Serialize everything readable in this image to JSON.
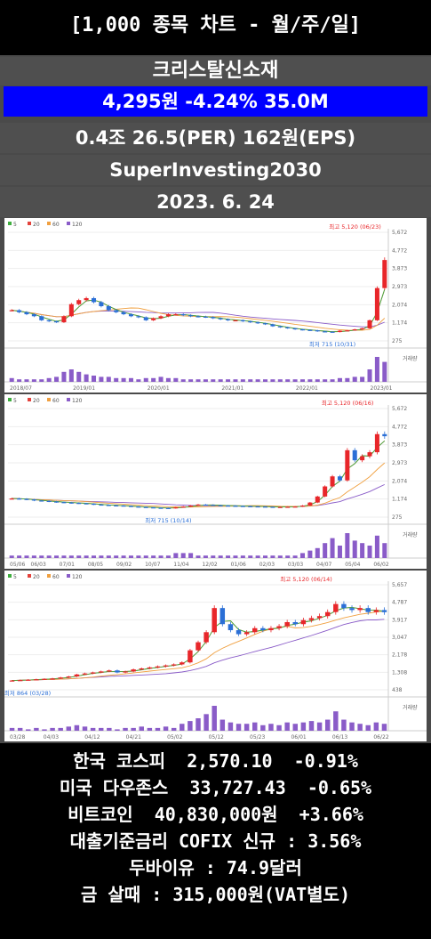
{
  "header": {
    "title": "[1,000 종목 차트 - 월/주/일]",
    "stock_name": "크리스탈신소재",
    "price_line": "4,295원  -4.24%  35.0M",
    "stats_line": "0.4조  26.5(PER)  162원(EPS)",
    "site": "SuperInvesting2030",
    "date": "2023. 6. 24"
  },
  "colors": {
    "up": "#e8262a",
    "down": "#2b6fd6",
    "ma5": "#3fae3f",
    "ma20": "#e3423b",
    "ma60": "#f0a040",
    "ma120": "#8a5cc8",
    "price_bar": "#0000ff"
  },
  "chart_data": [
    {
      "type": "candlestick",
      "period": "monthly",
      "legend": [
        "5",
        "20",
        "60",
        "120"
      ],
      "y_ticks": [
        "5,672",
        "4,772",
        "3,873",
        "2,973",
        "2,074",
        "1,174",
        "275"
      ],
      "ylim": [
        275,
        5672
      ],
      "x_ticks": [
        "2018/07",
        "2019/01",
        "2020/01",
        "2021/01",
        "2022/01",
        "2023/01"
      ],
      "high_label": "최고 5,120 (06/23)",
      "low_label": "최저 715 (10/31)",
      "volume_label": "거래량",
      "close": [
        1800,
        1700,
        1600,
        1500,
        1300,
        1250,
        1200,
        1500,
        2100,
        2300,
        2400,
        2200,
        2000,
        1800,
        1700,
        1600,
        1500,
        1450,
        1300,
        1400,
        1500,
        1600,
        1600,
        1550,
        1500,
        1480,
        1460,
        1400,
        1350,
        1300,
        1300,
        1250,
        1200,
        1150,
        1100,
        1000,
        950,
        900,
        850,
        820,
        800,
        750,
        730,
        715,
        780,
        800,
        850,
        900,
        1300,
        2900,
        4295
      ],
      "volume": [
        3,
        2,
        2,
        2,
        2,
        3,
        4,
        8,
        10,
        8,
        6,
        5,
        4,
        4,
        3,
        3,
        3,
        2,
        3,
        3,
        4,
        3,
        3,
        2,
        2,
        2,
        2,
        2,
        2,
        2,
        2,
        2,
        2,
        2,
        2,
        2,
        2,
        2,
        2,
        2,
        2,
        2,
        2,
        2,
        3,
        3,
        4,
        4,
        10,
        20,
        16
      ]
    },
    {
      "type": "candlestick",
      "period": "weekly",
      "legend": [
        "5",
        "20",
        "60",
        "120"
      ],
      "y_ticks": [
        "5,672",
        "4,772",
        "3,873",
        "2,973",
        "2,074",
        "1,174",
        "275"
      ],
      "ylim": [
        275,
        5672
      ],
      "x_ticks": [
        "05/06",
        "06/03",
        "07/01",
        "08/05",
        "09/02",
        "10/07",
        "11/04",
        "12/02",
        "01/06",
        "02/03",
        "03/03",
        "04/07",
        "05/04",
        "06/02"
      ],
      "high_label": "최고 5,120 (06/16)",
      "low_label": "최저 715 (10/14)",
      "volume_label": "거래량",
      "close": [
        1200,
        1180,
        1150,
        1100,
        1080,
        1050,
        1020,
        1000,
        980,
        960,
        940,
        900,
        880,
        860,
        850,
        830,
        800,
        780,
        760,
        740,
        730,
        715,
        760,
        800,
        850,
        900,
        880,
        860,
        850,
        840,
        830,
        820,
        810,
        800,
        790,
        780,
        780,
        790,
        800,
        850,
        1000,
        1300,
        1800,
        2300,
        2100,
        3600,
        3100,
        3300,
        3500,
        4400,
        4295
      ],
      "volume": [
        1,
        1,
        1,
        1,
        1,
        1,
        1,
        1,
        1,
        1,
        1,
        1,
        1,
        1,
        1,
        1,
        1,
        1,
        1,
        1,
        1,
        1,
        2,
        2,
        2,
        1,
        1,
        1,
        1,
        1,
        1,
        1,
        1,
        1,
        1,
        1,
        1,
        1,
        1,
        2,
        3,
        4,
        6,
        8,
        5,
        10,
        7,
        6,
        5,
        9,
        6
      ]
    },
    {
      "type": "candlestick",
      "period": "daily",
      "legend": [
        "5",
        "20",
        "60",
        "120"
      ],
      "y_ticks": [
        "5,657",
        "4,787",
        "3,917",
        "3,047",
        "2,178",
        "1,308",
        "438"
      ],
      "ylim": [
        438,
        5657
      ],
      "x_ticks": [
        "03/28",
        "04/03",
        "04/12",
        "04/21",
        "05/02",
        "05/12",
        "05/23",
        "06/01",
        "06/13",
        "06/22"
      ],
      "high_label": "최고 5,120 (06/14)",
      "low_label": "최저 864 (03/28)",
      "volume_label": "거래량",
      "close": [
        900,
        920,
        940,
        960,
        980,
        1000,
        1050,
        1100,
        1200,
        1250,
        1300,
        1350,
        1400,
        1300,
        1350,
        1450,
        1500,
        1550,
        1600,
        1650,
        1700,
        1800,
        2400,
        2800,
        3300,
        4500,
        3700,
        3400,
        3200,
        3300,
        3500,
        3400,
        3500,
        3600,
        3800,
        3700,
        3900,
        4000,
        4100,
        4300,
        4700,
        4500,
        4400,
        4500,
        4300,
        4400,
        4295
      ],
      "volume": [
        2,
        2,
        1,
        2,
        1,
        2,
        2,
        3,
        4,
        3,
        2,
        2,
        2,
        1,
        2,
        2,
        3,
        2,
        2,
        3,
        2,
        5,
        7,
        9,
        12,
        18,
        8,
        6,
        5,
        5,
        6,
        4,
        5,
        4,
        6,
        5,
        6,
        7,
        6,
        8,
        14,
        8,
        6,
        5,
        4,
        6,
        5
      ]
    }
  ],
  "market": {
    "kospi": "한국 코스피  2,570.10  -0.91%",
    "dow": "미국 다우존스  33,727.43  -0.65%",
    "bitcoin": "비트코인  40,830,000원  +3.66%",
    "cofix": "대출기준금리 COFIX 신규 : 3.56%",
    "dubai": "두바이유 : 74.9달러",
    "gold": "금 살때 : 315,000원(VAT별도)"
  }
}
